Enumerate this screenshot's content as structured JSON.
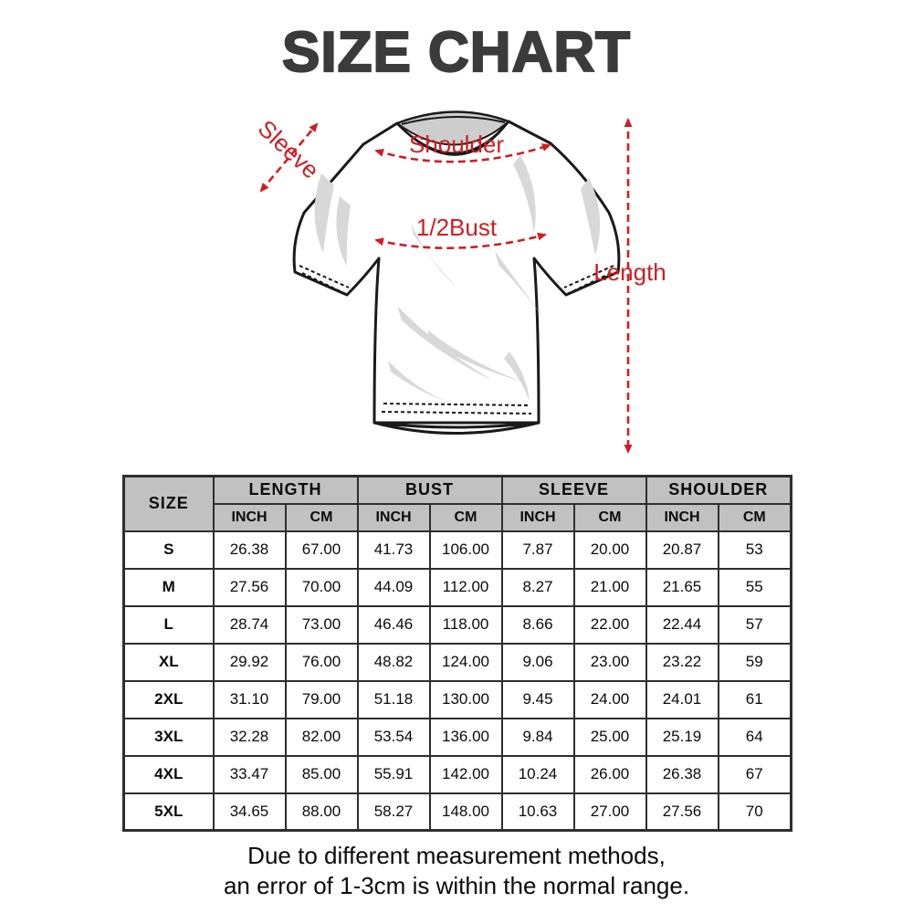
{
  "title": "SIZE CHART",
  "diagram": {
    "labels": {
      "sleeve": "Sleeve",
      "shoulder": "Shoulder",
      "bust": "1/2Bust",
      "length": "Length"
    }
  },
  "colors": {
    "annotation_red": "#d01d23",
    "header_gray": "#c1c1c1",
    "title_gray": "#3b3b3b"
  },
  "table": {
    "size_header": "SIZE",
    "groups": [
      {
        "label": "LENGTH"
      },
      {
        "label": "BUST"
      },
      {
        "label": "SLEEVE"
      },
      {
        "label": "SHOULDER"
      }
    ],
    "unit_headers": [
      "INCH",
      "CM",
      "INCH",
      "CM",
      "INCH",
      "CM",
      "INCH",
      "CM"
    ],
    "rows": [
      {
        "size": "S",
        "values": [
          "26.38",
          "67.00",
          "41.73",
          "106.00",
          "7.87",
          "20.00",
          "20.87",
          "53"
        ]
      },
      {
        "size": "M",
        "values": [
          "27.56",
          "70.00",
          "44.09",
          "112.00",
          "8.27",
          "21.00",
          "21.65",
          "55"
        ]
      },
      {
        "size": "L",
        "values": [
          "28.74",
          "73.00",
          "46.46",
          "118.00",
          "8.66",
          "22.00",
          "22.44",
          "57"
        ]
      },
      {
        "size": "XL",
        "values": [
          "29.92",
          "76.00",
          "48.82",
          "124.00",
          "9.06",
          "23.00",
          "23.22",
          "59"
        ]
      },
      {
        "size": "2XL",
        "values": [
          "31.10",
          "79.00",
          "51.18",
          "130.00",
          "9.45",
          "24.00",
          "24.01",
          "61"
        ]
      },
      {
        "size": "3XL",
        "values": [
          "32.28",
          "82.00",
          "53.54",
          "136.00",
          "9.84",
          "25.00",
          "25.19",
          "64"
        ]
      },
      {
        "size": "4XL",
        "values": [
          "33.47",
          "85.00",
          "55.91",
          "142.00",
          "10.24",
          "26.00",
          "26.38",
          "67"
        ]
      },
      {
        "size": "5XL",
        "values": [
          "34.65",
          "88.00",
          "58.27",
          "148.00",
          "10.63",
          "27.00",
          "27.56",
          "70"
        ]
      }
    ]
  },
  "footer": {
    "line1": "Due to different measurement methods,",
    "line2": "an error of 1-3cm is within the normal range."
  }
}
